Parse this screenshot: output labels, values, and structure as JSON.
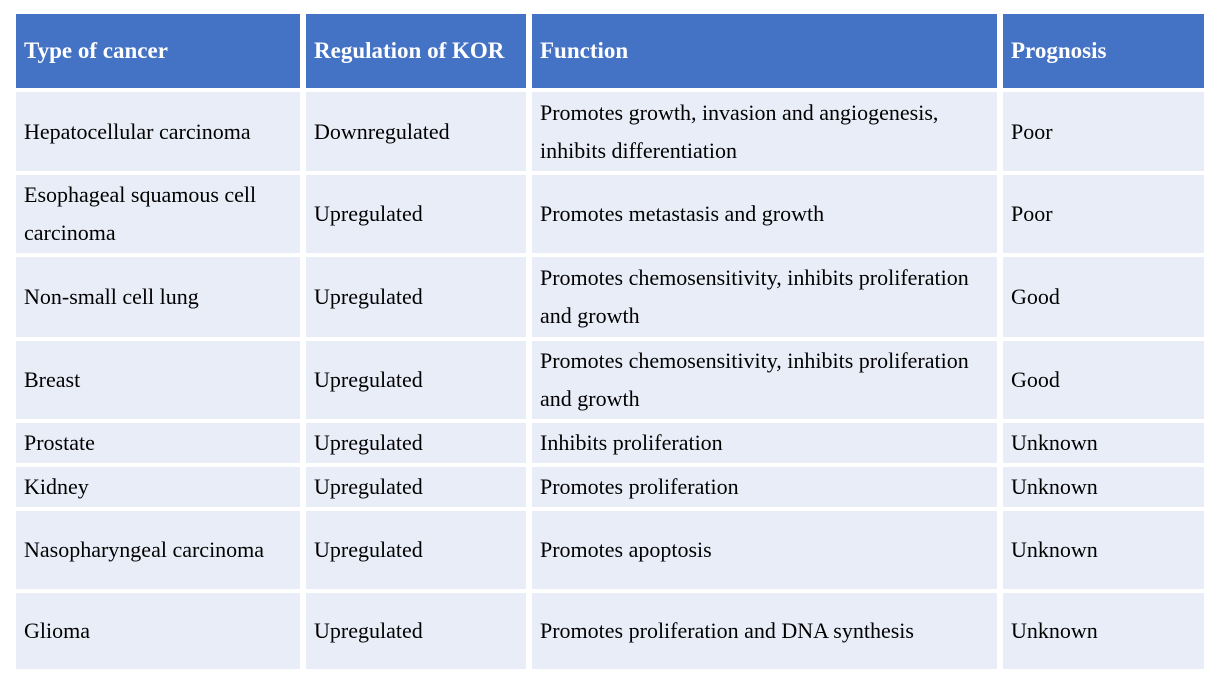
{
  "colors": {
    "header_bg": "#4472C4",
    "header_text": "#FFFFFF",
    "row_bg": "#E9EDF8",
    "body_text": "#000000"
  },
  "table": {
    "columns": [
      "Type of cancer",
      "Regulation of KOR",
      "Function",
      "Prognosis"
    ],
    "rows": [
      {
        "type_of_cancer": "Hepatocellular carcinoma",
        "regulation_of_kor": "Downregulated",
        "function": "Promotes growth, invasion and angiogenesis, inhibits differentiation",
        "prognosis": "Poor"
      },
      {
        "type_of_cancer": "Esophageal squamous cell carcinoma",
        "regulation_of_kor": "Upregulated",
        "function": "Promotes metastasis and growth",
        "prognosis": "Poor"
      },
      {
        "type_of_cancer": "Non-small cell lung",
        "regulation_of_kor": "Upregulated",
        "function": "Promotes chemosensitivity, inhibits proliferation and growth",
        "prognosis": "Good"
      },
      {
        "type_of_cancer": "Breast",
        "regulation_of_kor": "Upregulated",
        "function": "Promotes chemosensitivity, inhibits proliferation and growth",
        "prognosis": "Good"
      },
      {
        "type_of_cancer": "Prostate",
        "regulation_of_kor": "Upregulated",
        "function": "Inhibits proliferation",
        "prognosis": "Unknown"
      },
      {
        "type_of_cancer": "Kidney",
        "regulation_of_kor": "Upregulated",
        "function": "Promotes proliferation",
        "prognosis": "Unknown"
      },
      {
        "type_of_cancer": "Nasopharyngeal carcinoma",
        "regulation_of_kor": "Upregulated",
        "function": "Promotes apoptosis",
        "prognosis": "Unknown"
      },
      {
        "type_of_cancer": "Glioma",
        "regulation_of_kor": "Upregulated",
        "function": "Promotes proliferation and DNA synthesis",
        "prognosis": "Unknown"
      }
    ]
  }
}
